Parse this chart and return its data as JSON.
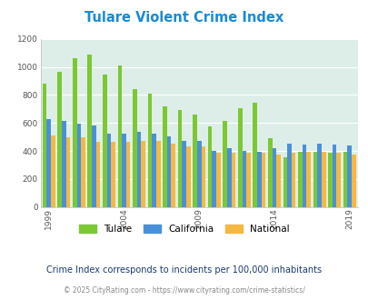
{
  "title": "Tulare Violent Crime Index",
  "years": [
    1999,
    2000,
    2001,
    2002,
    2003,
    2004,
    2005,
    2006,
    2007,
    2008,
    2009,
    2010,
    2011,
    2012,
    2013,
    2014,
    2015,
    2016,
    2017,
    2018,
    2019
  ],
  "tulare": [
    880,
    965,
    1065,
    1090,
    945,
    1010,
    840,
    810,
    720,
    695,
    660,
    575,
    615,
    705,
    748,
    490,
    355,
    395,
    395,
    390,
    395
  ],
  "california": [
    625,
    615,
    595,
    580,
    525,
    525,
    535,
    525,
    505,
    470,
    470,
    400,
    420,
    400,
    395,
    420,
    450,
    445,
    450,
    445,
    440
  ],
  "national": [
    510,
    500,
    495,
    465,
    465,
    465,
    470,
    475,
    450,
    435,
    430,
    390,
    390,
    385,
    385,
    375,
    390,
    395,
    395,
    385,
    375
  ],
  "tulare_color": "#7cc832",
  "california_color": "#4a90d9",
  "national_color": "#f5b840",
  "bg_color": "#ddeee8",
  "title_color": "#1a8ad4",
  "ylim": [
    0,
    1200
  ],
  "yticks": [
    0,
    200,
    400,
    600,
    800,
    1000,
    1200
  ],
  "xlabel_ticks": [
    1999,
    2004,
    2009,
    2014,
    2019
  ],
  "subtitle": "Crime Index corresponds to incidents per 100,000 inhabitants",
  "footer": "© 2025 CityRating.com - https://www.cityrating.com/crime-statistics/",
  "subtitle_color": "#1a3a6e",
  "footer_color": "#888888"
}
